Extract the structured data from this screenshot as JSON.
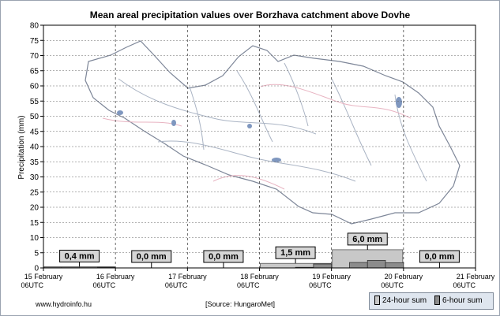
{
  "chart_data": {
    "type": "bar",
    "title": "Mean areal precipitation values over Borzhava catchment above Dovhe",
    "ylabel": "Precipitation (mm)",
    "ylim": [
      0,
      80
    ],
    "yticks": [
      0,
      5,
      10,
      15,
      20,
      25,
      30,
      35,
      40,
      45,
      50,
      55,
      60,
      65,
      70,
      75,
      80
    ],
    "grid": true,
    "legend_position": "bottom-right",
    "x_ticks": [
      {
        "line1": "15 February",
        "line2": "06UTC"
      },
      {
        "line1": "16 February",
        "line2": "06UTC"
      },
      {
        "line1": "17 February",
        "line2": "06UTC"
      },
      {
        "line1": "18 February",
        "line2": "06UTC"
      },
      {
        "line1": "19 February",
        "line2": "06UTC"
      },
      {
        "line1": "20 February",
        "line2": "06UTC"
      },
      {
        "line1": "21 February",
        "line2": "06UTC"
      }
    ],
    "series": [
      {
        "name": "24-hour sum",
        "color": "#c8c8c8",
        "values": [
          0.4,
          0.0,
          0.0,
          1.5,
          6.0,
          0.0
        ],
        "labels": [
          "0,4 mm",
          "0,0 mm",
          "0,0 mm",
          "1,5 mm",
          "6,0 mm",
          "0,0 mm"
        ]
      },
      {
        "name": "6-hour sum",
        "color": "#8c8c8c",
        "values": [
          0.1,
          0.1,
          0.1,
          0.2,
          0.0,
          0.0,
          0.0,
          0.0,
          0.0,
          0.0,
          0.0,
          0.0,
          0.0,
          0.0,
          0.2,
          1.3,
          0.0,
          1.8,
          2.5,
          1.7,
          0.0,
          0.0,
          0.0,
          0.0
        ]
      }
    ]
  },
  "footer": {
    "website": "www.hydroinfo.hu",
    "source": "[Source: HungaroMet]"
  },
  "legend": {
    "item1": "24-hour sum",
    "item2": "6-hour sum"
  }
}
